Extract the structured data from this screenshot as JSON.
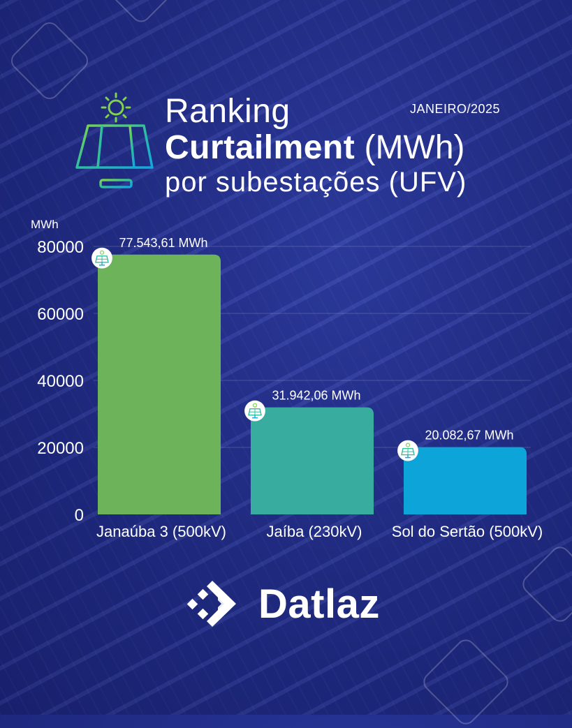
{
  "header": {
    "title_line1": "Ranking",
    "title_bold": "Curtailment",
    "title_unit": "(MWh)",
    "title_line3": "por subestações (UFV)",
    "date": "JANEIRO/2025"
  },
  "brand": {
    "name": "Datlaz"
  },
  "icons": {
    "title": "solar-panel-sun-icon",
    "bar": "solar-panel-badge-icon",
    "brand": "datlaz-logo-icon"
  },
  "colors": {
    "bar1": "#6db35a",
    "bar2": "#37ac9f",
    "bar3": "#0da5d9",
    "background": "#232f8c"
  },
  "chart_data": {
    "type": "bar",
    "ylabel": "MWh",
    "ylim": [
      0,
      80000
    ],
    "yticks": [
      0,
      20000,
      40000,
      60000,
      80000
    ],
    "grid": true,
    "categories": [
      "Janaúba 3 (500kV)",
      "Jaíba (230kV)",
      "Sol do Sertão (500kV)"
    ],
    "values": [
      77543.61,
      31942.06,
      20082.67
    ],
    "data_labels": [
      "77.543,61 MWh",
      "31.942,06 MWh",
      "20.082,67 MWh"
    ]
  }
}
